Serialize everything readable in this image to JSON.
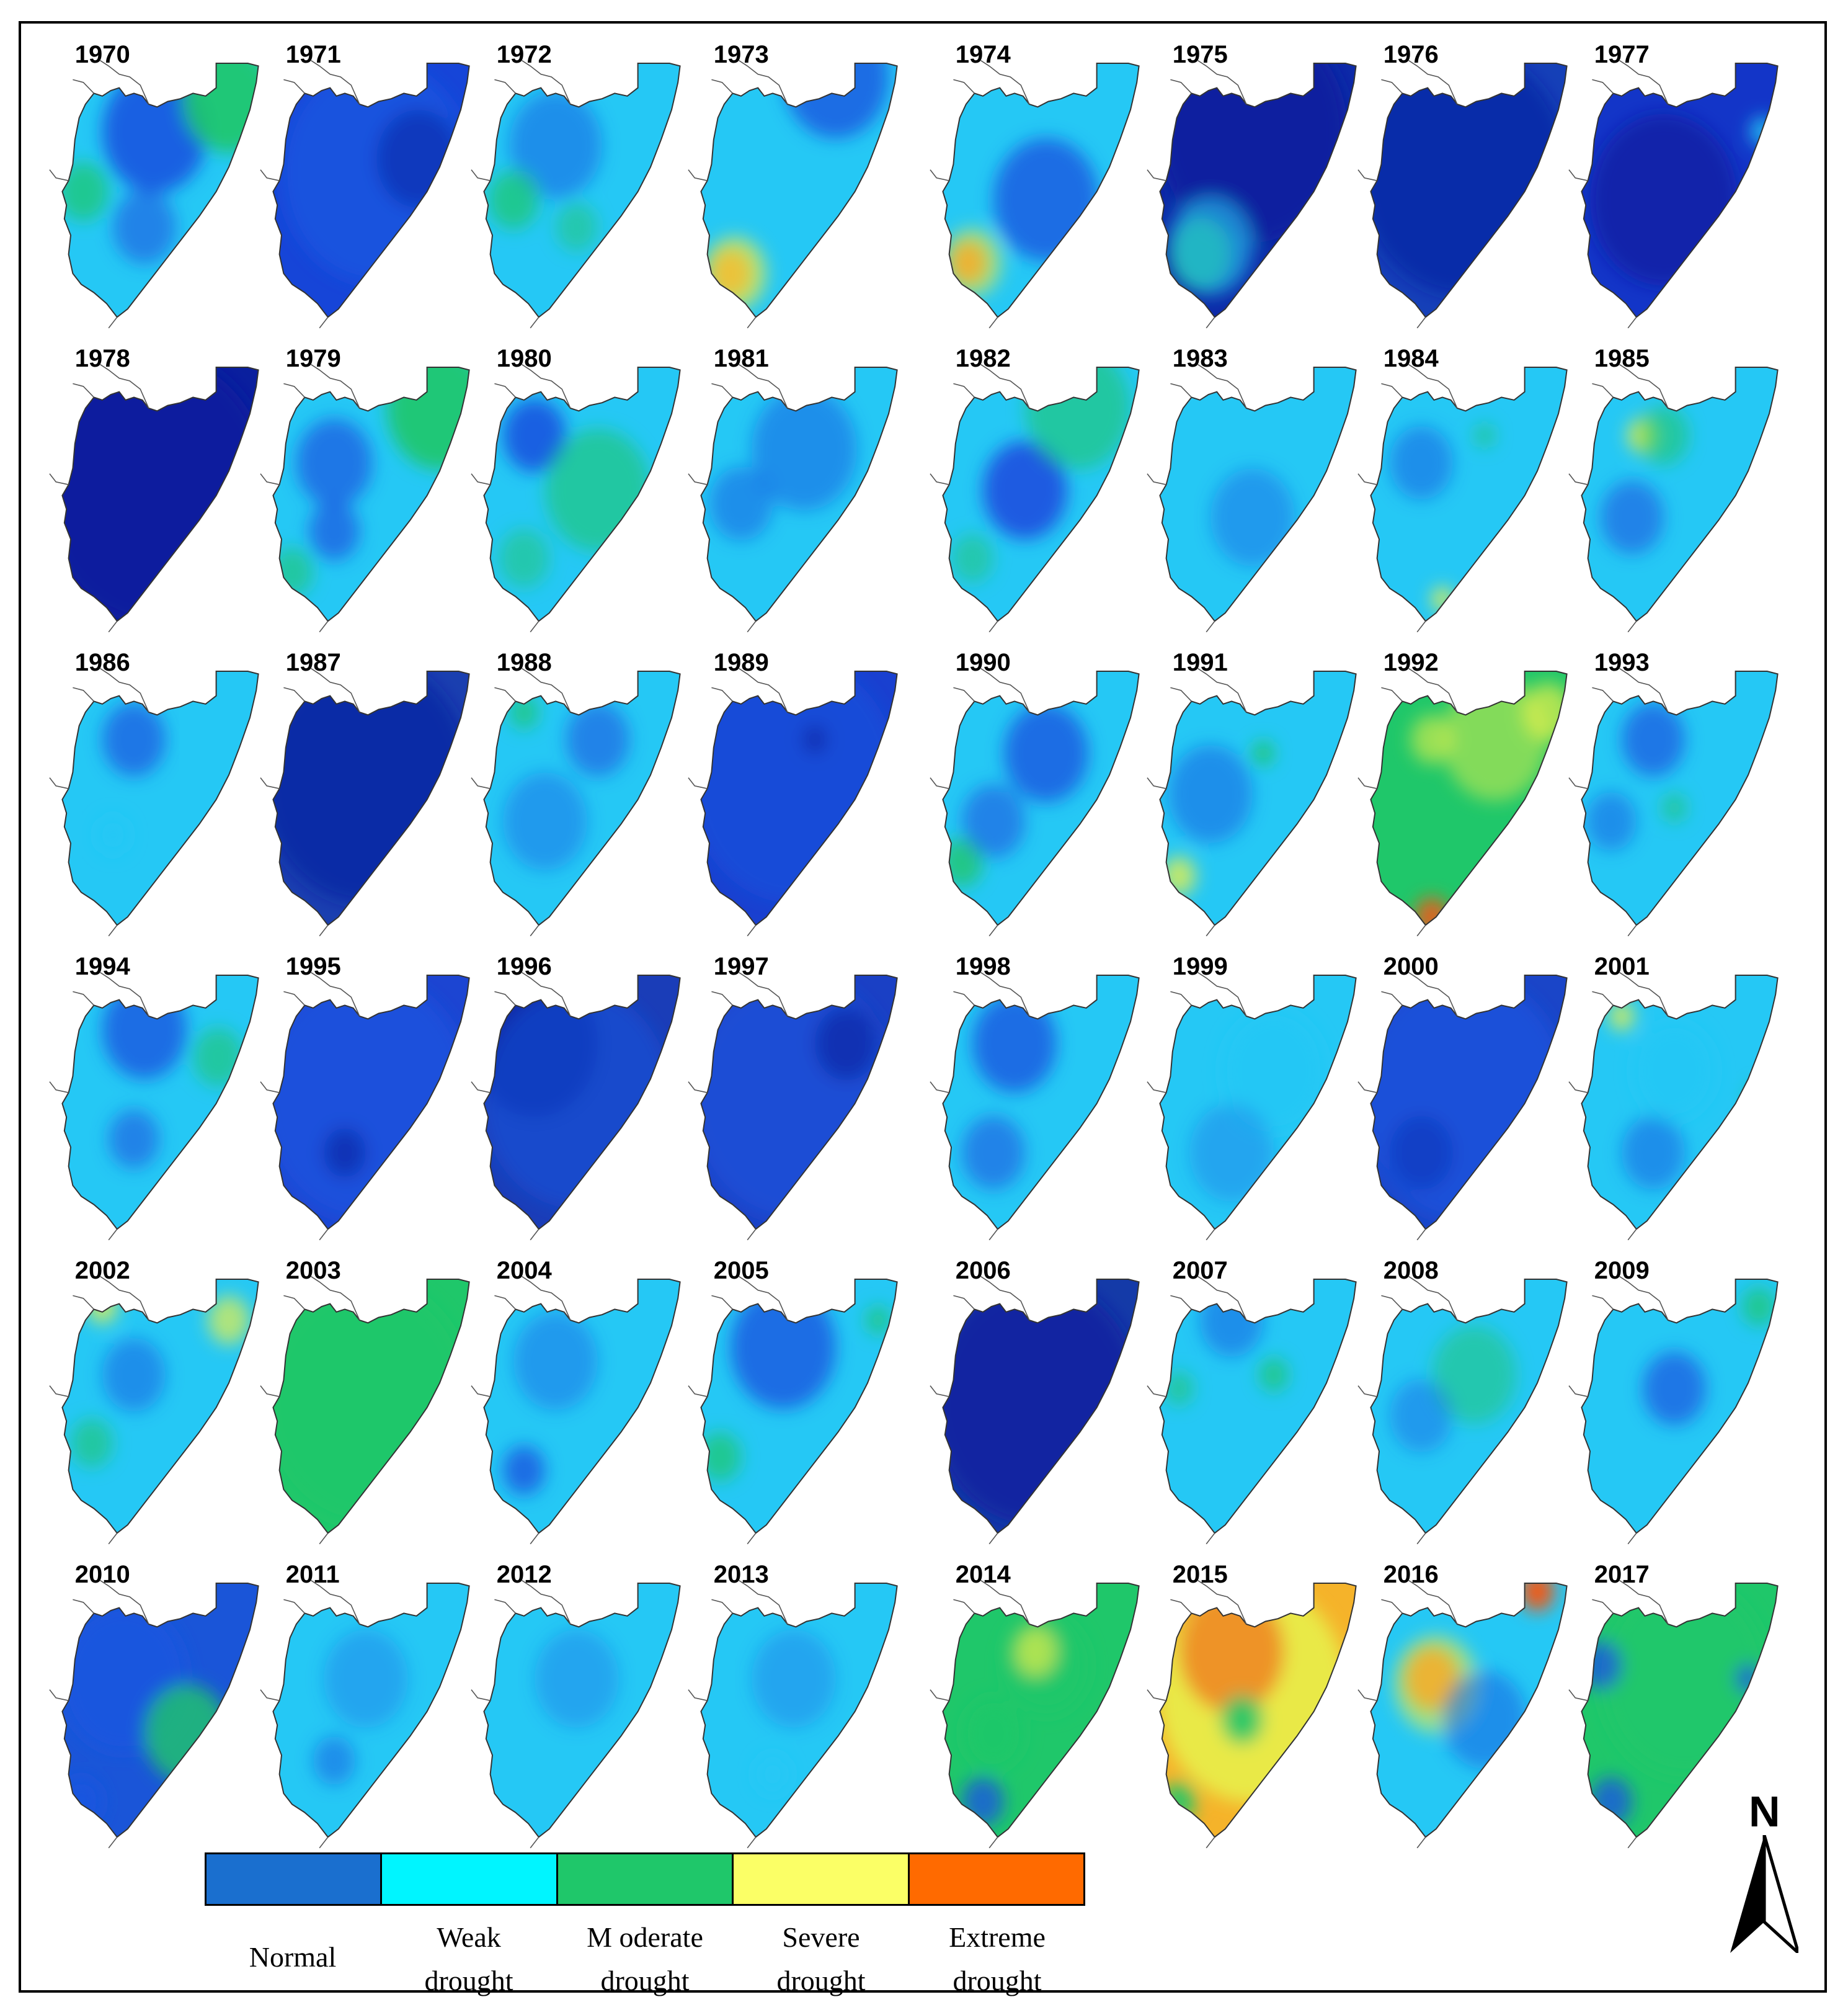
{
  "figure": {
    "years": [
      {
        "year": "1970",
        "panel": 0,
        "dominant": "weak"
      },
      {
        "year": "1971",
        "panel": 1,
        "dominant": "normal"
      },
      {
        "year": "1972",
        "panel": 2,
        "dominant": "weak"
      },
      {
        "year": "1973",
        "panel": 3,
        "dominant": "weak"
      },
      {
        "year": "1974",
        "panel": 4,
        "dominant": "weak"
      },
      {
        "year": "1975",
        "panel": 5,
        "dominant": "normal"
      },
      {
        "year": "1976",
        "panel": 6,
        "dominant": "normal"
      },
      {
        "year": "1977",
        "panel": 7,
        "dominant": "normal"
      },
      {
        "year": "1978",
        "panel": 8,
        "dominant": "normal"
      },
      {
        "year": "1979",
        "panel": 9,
        "dominant": "weak"
      },
      {
        "year": "1980",
        "panel": 10,
        "dominant": "weak"
      },
      {
        "year": "1981",
        "panel": 11,
        "dominant": "weak"
      },
      {
        "year": "1982",
        "panel": 12,
        "dominant": "weak"
      },
      {
        "year": "1983",
        "panel": 13,
        "dominant": "weak"
      },
      {
        "year": "1984",
        "panel": 14,
        "dominant": "weak"
      },
      {
        "year": "1985",
        "panel": 15,
        "dominant": "weak"
      },
      {
        "year": "1986",
        "panel": 16,
        "dominant": "weak"
      },
      {
        "year": "1987",
        "panel": 17,
        "dominant": "normal"
      },
      {
        "year": "1988",
        "panel": 18,
        "dominant": "weak"
      },
      {
        "year": "1989",
        "panel": 19,
        "dominant": "normal"
      },
      {
        "year": "1990",
        "panel": 20,
        "dominant": "weak"
      },
      {
        "year": "1991",
        "panel": 21,
        "dominant": "weak"
      },
      {
        "year": "1992",
        "panel": 22,
        "dominant": "moderate"
      },
      {
        "year": "1993",
        "panel": 23,
        "dominant": "weak"
      },
      {
        "year": "1994",
        "panel": 24,
        "dominant": "weak"
      },
      {
        "year": "1995",
        "panel": 25,
        "dominant": "normal"
      },
      {
        "year": "1996",
        "panel": 26,
        "dominant": "normal"
      },
      {
        "year": "1997",
        "panel": 27,
        "dominant": "normal"
      },
      {
        "year": "1998",
        "panel": 28,
        "dominant": "weak"
      },
      {
        "year": "1999",
        "panel": 29,
        "dominant": "weak"
      },
      {
        "year": "2000",
        "panel": 30,
        "dominant": "normal"
      },
      {
        "year": "2001",
        "panel": 31,
        "dominant": "weak"
      },
      {
        "year": "2002",
        "panel": 32,
        "dominant": "weak"
      },
      {
        "year": "2003",
        "panel": 33,
        "dominant": "moderate"
      },
      {
        "year": "2004",
        "panel": 34,
        "dominant": "weak"
      },
      {
        "year": "2005",
        "panel": 35,
        "dominant": "weak"
      },
      {
        "year": "2006",
        "panel": 36,
        "dominant": "normal"
      },
      {
        "year": "2007",
        "panel": 37,
        "dominant": "weak"
      },
      {
        "year": "2008",
        "panel": 38,
        "dominant": "weak"
      },
      {
        "year": "2009",
        "panel": 39,
        "dominant": "weak"
      },
      {
        "year": "2010",
        "panel": 40,
        "dominant": "normal"
      },
      {
        "year": "2011",
        "panel": 41,
        "dominant": "weak"
      },
      {
        "year": "2012",
        "panel": 42,
        "dominant": "weak"
      },
      {
        "year": "2013",
        "panel": 43,
        "dominant": "weak"
      },
      {
        "year": "2014",
        "panel": 44,
        "dominant": "moderate"
      },
      {
        "year": "2015",
        "panel": 45,
        "dominant": "severe"
      },
      {
        "year": "2016",
        "panel": 46,
        "dominant": "weak"
      },
      {
        "year": "2017",
        "panel": 47,
        "dominant": "moderate"
      }
    ],
    "legend": [
      {
        "key": "normal",
        "line1": "Normal",
        "line2": "",
        "color": "#1a6fcf"
      },
      {
        "key": "weak",
        "line1": "Weak",
        "line2": "drought",
        "color": "#00f5ff"
      },
      {
        "key": "moderate",
        "line1": "M oderate",
        "line2": "drought",
        "color": "#1fc76a"
      },
      {
        "key": "severe",
        "line1": "Severe",
        "line2": "drought",
        "color": "#fbff66"
      },
      {
        "key": "extreme",
        "line1": "Extreme",
        "line2": "drought",
        "color": "#ff6a00"
      }
    ],
    "north_arrow_label": "N",
    "palette": {
      "deep": "#0a1f9e",
      "normal": "#1a55e0",
      "weak": "#25c8f5",
      "moderate": "#1fc76a",
      "severe": "#e8f04a",
      "extreme": "#f05a14",
      "outline": "#333333"
    }
  }
}
